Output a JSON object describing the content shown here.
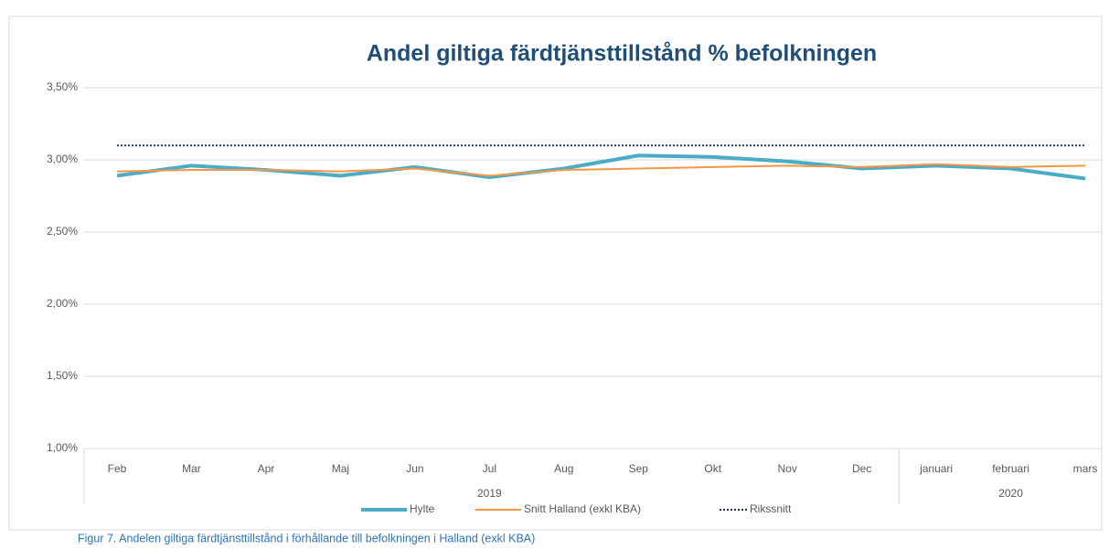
{
  "chart_data": {
    "type": "line",
    "title": "Andel giltiga färdtjänsttillstånd % befolkningen",
    "category_groups": [
      {
        "name": "2019",
        "categories": [
          "Feb",
          "Mar",
          "Apr",
          "Maj",
          "Jun",
          "Jul",
          "Aug",
          "Sep",
          "Okt",
          "Nov",
          "Dec"
        ]
      },
      {
        "name": "2020",
        "categories": [
          "januari",
          "februari",
          "mars"
        ]
      }
    ],
    "series": [
      {
        "name": "Hylte",
        "color": "#4bacc6",
        "style": "solid",
        "width": 4,
        "values": [
          2.89,
          2.96,
          2.93,
          2.89,
          2.95,
          2.88,
          2.94,
          3.03,
          3.02,
          2.99,
          2.94,
          2.96,
          2.94,
          2.87
        ]
      },
      {
        "name": "Snitt Halland (exkl KBA)",
        "color": "#f79646",
        "style": "solid",
        "width": 2,
        "values": [
          2.92,
          2.93,
          2.93,
          2.92,
          2.94,
          2.89,
          2.93,
          2.94,
          2.95,
          2.96,
          2.95,
          2.97,
          2.95,
          2.96
        ]
      },
      {
        "name": "Rikssnitt",
        "color": "#1f3864",
        "style": "dotted",
        "width": 2,
        "values": [
          3.1,
          3.1,
          3.1,
          3.1,
          3.1,
          3.1,
          3.1,
          3.1,
          3.1,
          3.1,
          3.1,
          3.1,
          3.1,
          3.1
        ]
      }
    ],
    "ylim": [
      1,
      3.5
    ],
    "yticks": [
      {
        "value": 1,
        "label": "1,00%"
      },
      {
        "value": 1.5,
        "label": "1,50%"
      },
      {
        "value": 2,
        "label": "2,00%"
      },
      {
        "value": 2.5,
        "label": "2,50%"
      },
      {
        "value": 3,
        "label": "3,00%"
      },
      {
        "value": 3.5,
        "label": "3,50%"
      }
    ],
    "grid": true,
    "legend": "bottom"
  },
  "caption": "Figur 7. Andelen giltiga färdtjänsttillstånd i förhållande till befolkningen i  Halland (exkl KBA)"
}
